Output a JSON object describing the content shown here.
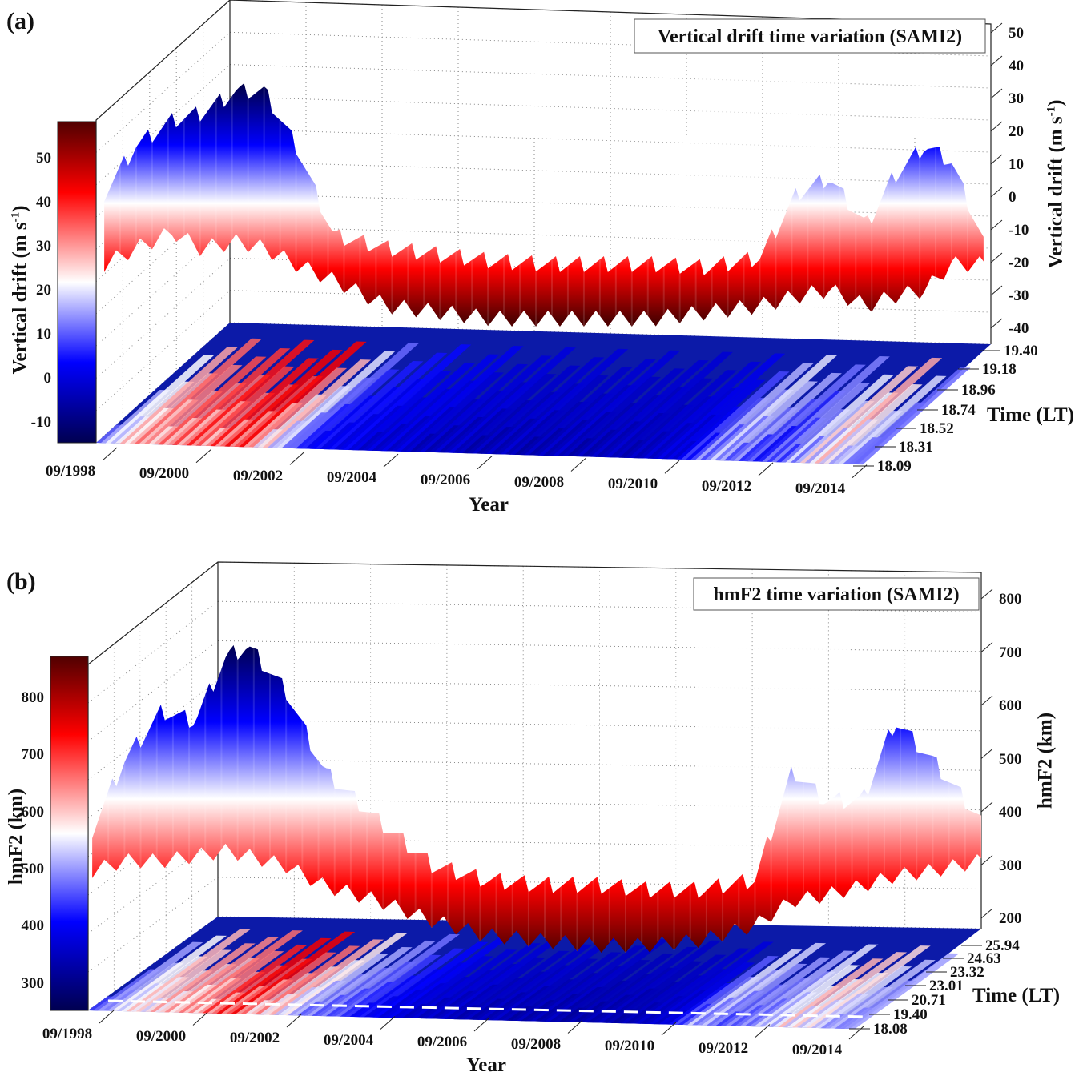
{
  "chart_data": [
    {
      "type": "surface3d",
      "panel_label": "(a)",
      "title": "Vertical drift time variation (SAMI2)",
      "xlabel": "Year",
      "ylabel": "Time (LT)",
      "zlabel_main": "Vertical drift (m s",
      "zlabel_sup": "-1",
      "zlabel_end": ")",
      "x_ticks": [
        "09/1998",
        "09/2000",
        "09/2002",
        "09/2004",
        "09/2006",
        "09/2008",
        "09/2010",
        "09/2012",
        "09/2014"
      ],
      "y_ticks": [
        "19.40",
        "19.18",
        "18.96",
        "18.74",
        "18.52",
        "18.31",
        "18.09"
      ],
      "z_ticks": [
        "50",
        "40",
        "30",
        "20",
        "10",
        "0",
        "-10",
        "-20",
        "-30",
        "-40"
      ],
      "zlim": [
        -40,
        50
      ],
      "colorbar_ticks": [
        "50",
        "40",
        "30",
        "20",
        "10",
        "0",
        "-10"
      ],
      "colorbar_range": [
        -15,
        58
      ],
      "profile": {
        "year": [
          1998.7,
          1999.3,
          2000.0,
          2000.5,
          2001.2,
          2001.7,
          2002.3,
          2003.0,
          2004.0,
          2005.0,
          2006.0,
          2007.0,
          2008.0,
          2009.0,
          2010.0,
          2011.0,
          2011.7,
          2012.3,
          2013.0,
          2013.5,
          2014.1,
          2014.6,
          2015.2
        ],
        "max": [
          25,
          40,
          48,
          50,
          57,
          57,
          40,
          12,
          8,
          6,
          4,
          3,
          3,
          3,
          2,
          5,
          25,
          30,
          15,
          30,
          40,
          35,
          10
        ],
        "min": [
          5,
          10,
          15,
          10,
          12,
          10,
          5,
          0,
          -8,
          -10,
          -12,
          -12,
          -12,
          -12,
          -10,
          -8,
          -5,
          -3,
          -8,
          -5,
          -3,
          5,
          5
        ]
      }
    },
    {
      "type": "surface3d",
      "panel_label": "(b)",
      "title": "hmF2 time variation (SAMI2)",
      "xlabel": "Year",
      "ylabel": "Time (LT)",
      "zlabel_main": "hmF2 (km)",
      "x_ticks": [
        "09/1998",
        "09/2000",
        "09/2002",
        "09/2004",
        "09/2006",
        "09/2008",
        "09/2010",
        "09/2012",
        "09/2014"
      ],
      "y_ticks": [
        "25.94",
        "24.63",
        "23.32",
        "23.01",
        "20.71",
        "19.40",
        "18.08"
      ],
      "z_ticks": [
        "800",
        "700",
        "600",
        "500",
        "400",
        "300",
        "200"
      ],
      "zlim": [
        200,
        800
      ],
      "colorbar_ticks": [
        "800",
        "700",
        "600",
        "500",
        "400",
        "300"
      ],
      "colorbar_range": [
        250,
        870
      ],
      "profile": {
        "year": [
          1998.7,
          1999.3,
          2000.0,
          2000.6,
          2001.2,
          2001.6,
          2002.3,
          2003.0,
          2004.0,
          2005.0,
          2006.0,
          2007.0,
          2008.0,
          2009.0,
          2010.0,
          2011.0,
          2011.7,
          2012.3,
          2013.0,
          2013.6,
          2014.3,
          2015.2
        ],
        "max": [
          500,
          640,
          740,
          720,
          850,
          870,
          780,
          620,
          520,
          430,
          400,
          390,
          390,
          380,
          380,
          400,
          620,
          560,
          560,
          720,
          640,
          520
        ],
        "min": [
          430,
          450,
          450,
          460,
          470,
          460,
          440,
          400,
          370,
          330,
          300,
          290,
          280,
          280,
          290,
          320,
          370,
          380,
          400,
          420,
          430,
          450
        ]
      }
    }
  ],
  "colors": {
    "cmap": [
      "#000050",
      "#0000ff",
      "#ffffff",
      "#ff0000",
      "#500000"
    ],
    "dash": "#ffffff"
  }
}
